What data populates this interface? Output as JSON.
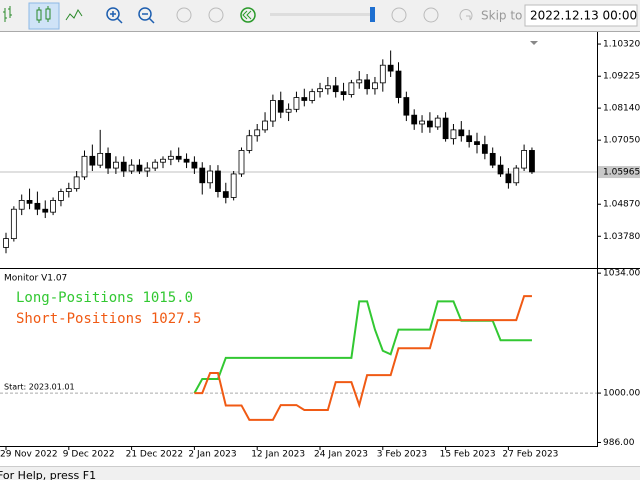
{
  "toolbar": {
    "skip_label": "Skip to",
    "date": "2022.12.13 00:00"
  },
  "status": "For Help, press F1",
  "chart_data": [
    {
      "type": "candlestick",
      "categories": [
        "29 Nov 2022",
        null,
        null,
        null,
        null,
        null,
        null,
        null,
        "9 Dec 2022",
        null,
        null,
        null,
        null,
        null,
        null,
        null,
        "21 Dec 2022",
        null,
        null,
        null,
        null,
        null,
        null,
        null,
        "2 Jan 2023",
        null,
        null,
        null,
        null,
        null,
        null,
        null,
        "12 Jan 2023",
        null,
        null,
        null,
        null,
        null,
        null,
        null,
        "24 Jan 2023",
        null,
        null,
        null,
        null,
        null,
        null,
        null,
        "3 Feb 2023",
        null,
        null,
        null,
        null,
        null,
        null,
        null,
        "15 Feb 2023",
        null,
        null,
        null,
        null,
        null,
        null,
        null,
        "27 Feb 2023",
        null,
        null,
        null
      ],
      "open": [
        1.034,
        1.037,
        1.047,
        1.05,
        1.049,
        1.047,
        1.046,
        1.05,
        1.053,
        1.054,
        1.058,
        1.065,
        1.062,
        1.066,
        1.061,
        1.063,
        1.06,
        1.062,
        1.06,
        1.061,
        1.063,
        1.064,
        1.065,
        1.064,
        1.063,
        1.061,
        1.056,
        1.06,
        1.053,
        1.051,
        1.059,
        1.067,
        1.072,
        1.074,
        1.077,
        1.084,
        1.08,
        1.081,
        1.085,
        1.084,
        1.087,
        1.088,
        1.089,
        1.087,
        1.086,
        1.09,
        1.091,
        1.088,
        1.09,
        1.096,
        1.094,
        1.085,
        1.079,
        1.076,
        1.077,
        1.075,
        1.078,
        1.071,
        1.074,
        1.072,
        1.07,
        1.069,
        1.066,
        1.062,
        1.059,
        1.056,
        1.061,
        1.067
      ],
      "high": [
        1.039,
        1.048,
        1.052,
        1.054,
        1.053,
        1.05,
        1.051,
        1.054,
        1.056,
        1.06,
        1.067,
        1.069,
        1.074,
        1.068,
        1.065,
        1.065,
        1.064,
        1.064,
        1.063,
        1.064,
        1.065,
        1.067,
        1.068,
        1.066,
        1.065,
        1.063,
        1.062,
        1.062,
        1.056,
        1.06,
        1.068,
        1.074,
        1.076,
        1.08,
        1.086,
        1.087,
        1.083,
        1.087,
        1.088,
        1.088,
        1.09,
        1.092,
        1.092,
        1.09,
        1.091,
        1.094,
        1.093,
        1.092,
        1.098,
        1.101,
        1.097,
        1.087,
        1.081,
        1.079,
        1.08,
        1.079,
        1.08,
        1.076,
        1.077,
        1.074,
        1.073,
        1.072,
        1.068,
        1.065,
        1.061,
        1.062,
        1.069,
        1.068
      ],
      "low": [
        1.032,
        1.036,
        1.045,
        1.047,
        1.045,
        1.044,
        1.045,
        1.048,
        1.051,
        1.053,
        1.057,
        1.06,
        1.061,
        1.059,
        1.059,
        1.058,
        1.059,
        1.059,
        1.058,
        1.06,
        1.061,
        1.062,
        1.063,
        1.061,
        1.059,
        1.052,
        1.054,
        1.051,
        1.049,
        1.05,
        1.058,
        1.066,
        1.07,
        1.073,
        1.075,
        1.078,
        1.077,
        1.08,
        1.082,
        1.083,
        1.085,
        1.086,
        1.085,
        1.084,
        1.085,
        1.088,
        1.086,
        1.086,
        1.087,
        1.092,
        1.083,
        1.077,
        1.074,
        1.073,
        1.073,
        1.074,
        1.07,
        1.069,
        1.07,
        1.068,
        1.066,
        1.064,
        1.061,
        1.058,
        1.054,
        1.055,
        1.06,
        1.059
      ],
      "close": [
        1.037,
        1.047,
        1.05,
        1.049,
        1.047,
        1.046,
        1.05,
        1.053,
        1.054,
        1.058,
        1.065,
        1.062,
        1.066,
        1.061,
        1.063,
        1.06,
        1.062,
        1.06,
        1.061,
        1.063,
        1.064,
        1.065,
        1.064,
        1.063,
        1.061,
        1.056,
        1.06,
        1.053,
        1.051,
        1.059,
        1.067,
        1.072,
        1.074,
        1.077,
        1.084,
        1.08,
        1.081,
        1.085,
        1.084,
        1.087,
        1.088,
        1.089,
        1.087,
        1.086,
        1.09,
        1.091,
        1.088,
        1.09,
        1.096,
        1.094,
        1.085,
        1.079,
        1.076,
        1.077,
        1.075,
        1.078,
        1.071,
        1.074,
        1.072,
        1.07,
        1.069,
        1.066,
        1.062,
        1.059,
        1.056,
        1.061,
        1.067,
        1.0597
      ],
      "ylim": [
        1.027,
        1.1073
      ],
      "yticks": [
        {
          "value": 1.1032,
          "label": "1.10320"
        },
        {
          "value": 1.09225,
          "label": "1.09225"
        },
        {
          "value": 1.0814,
          "label": "1.08140"
        },
        {
          "value": 1.0705,
          "label": "1.07050"
        },
        {
          "value": 1.0487,
          "label": "1.04870"
        },
        {
          "value": 1.0378,
          "label": "1.03780"
        }
      ],
      "bid_line": {
        "value": 1.05965,
        "label": "1.05965"
      },
      "bull_color": "#ffffff",
      "bear_color": "#000000"
    },
    {
      "type": "line",
      "title": "Monitor V1.07",
      "annotation": "Start: 2023.01.01",
      "levels": [
        1000
      ],
      "series": [
        {
          "name": "Long-Positions",
          "legend_value": "1015.0",
          "color": "#32c832",
          "values": [
            null,
            null,
            null,
            null,
            null,
            null,
            null,
            null,
            null,
            null,
            null,
            null,
            null,
            null,
            null,
            null,
            null,
            null,
            null,
            null,
            null,
            null,
            null,
            null,
            1000,
            1004,
            1004,
            1004,
            1010,
            1010,
            1010,
            1010,
            1010,
            1010,
            1010,
            1010,
            1010,
            1010,
            1010,
            1010,
            1010,
            1010,
            1010,
            1010,
            1010,
            1026,
            1026,
            1018,
            1012,
            1011,
            1018,
            1018,
            1018,
            1018,
            1018,
            1026,
            1026,
            1026,
            1020.5,
            1020.5,
            1020.5,
            1020.5,
            1020.5,
            1015,
            1015,
            1015,
            1015,
            1015
          ]
        },
        {
          "name": "Short-Positions",
          "legend_value": "1027.5",
          "color": "#f05a14",
          "values": [
            null,
            null,
            null,
            null,
            null,
            null,
            null,
            null,
            null,
            null,
            null,
            null,
            null,
            null,
            null,
            null,
            null,
            null,
            null,
            null,
            null,
            null,
            null,
            null,
            1000,
            1000,
            1005.7,
            1005.7,
            996.5,
            996.5,
            996.5,
            992.4,
            992.4,
            992.4,
            992.4,
            996.6,
            996.6,
            996.6,
            995.2,
            995.2,
            995.2,
            995.2,
            1003.1,
            1003.1,
            1003.1,
            996.6,
            1005.1,
            1005.1,
            1005.1,
            1005.1,
            1012.7,
            1012.7,
            1012.7,
            1012.7,
            1012.7,
            1020.7,
            1020.7,
            1020.7,
            1020.7,
            1020.7,
            1020.7,
            1020.7,
            1020.7,
            1020.7,
            1020.7,
            1020.7,
            1027.5,
            1027.5
          ]
        }
      ],
      "ylim": [
        985,
        1034.9
      ],
      "yticks": [
        {
          "value": 1034,
          "label": "1034.00"
        },
        {
          "value": 1000,
          "label": "1000.00"
        },
        {
          "value": 986,
          "label": "986.00"
        }
      ]
    }
  ]
}
